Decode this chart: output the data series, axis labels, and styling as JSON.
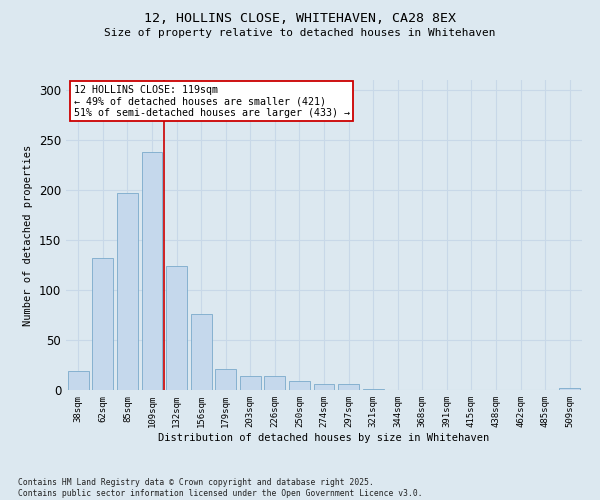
{
  "title_line1": "12, HOLLINS CLOSE, WHITEHAVEN, CA28 8EX",
  "title_line2": "Size of property relative to detached houses in Whitehaven",
  "xlabel": "Distribution of detached houses by size in Whitehaven",
  "ylabel": "Number of detached properties",
  "bar_color": "#c5d8ec",
  "bar_edge_color": "#7aaacb",
  "grid_color": "#c8d8e8",
  "background_color": "#dce8f0",
  "categories": [
    "38sqm",
    "62sqm",
    "85sqm",
    "109sqm",
    "132sqm",
    "156sqm",
    "179sqm",
    "203sqm",
    "226sqm",
    "250sqm",
    "274sqm",
    "297sqm",
    "321sqm",
    "344sqm",
    "368sqm",
    "391sqm",
    "415sqm",
    "438sqm",
    "462sqm",
    "485sqm",
    "509sqm"
  ],
  "values": [
    19,
    132,
    197,
    238,
    124,
    76,
    21,
    14,
    14,
    9,
    6,
    6,
    1,
    0,
    0,
    0,
    0,
    0,
    0,
    0,
    2
  ],
  "ylim": [
    0,
    310
  ],
  "yticks": [
    0,
    50,
    100,
    150,
    200,
    250,
    300
  ],
  "annotation_text": "12 HOLLINS CLOSE: 119sqm\n← 49% of detached houses are smaller (421)\n51% of semi-detached houses are larger (433) →",
  "vline_x": 3.5,
  "vline_color": "#cc0000",
  "box_facecolor": "#ffffff",
  "box_edgecolor": "#cc0000",
  "footnote": "Contains HM Land Registry data © Crown copyright and database right 2025.\nContains public sector information licensed under the Open Government Licence v3.0."
}
